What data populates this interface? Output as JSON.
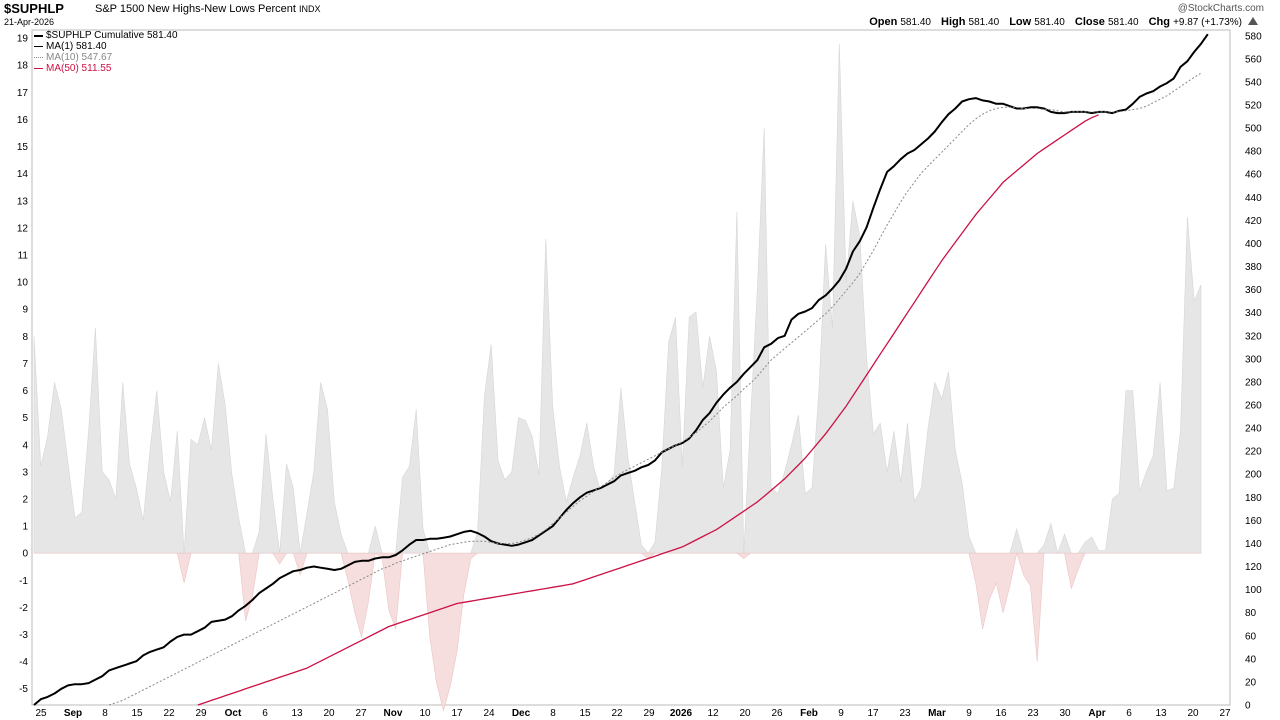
{
  "header": {
    "symbol": "$SUPHLP",
    "name": "S&P 1500 New Highs-New Lows Percent",
    "exchange": "INDX",
    "date": "21-Apr-2026",
    "brand": "@StockCharts.com",
    "open_label": "Open",
    "open": "581.40",
    "high_label": "High",
    "high": "581.40",
    "low_label": "Low",
    "low": "581.40",
    "close_label": "Close",
    "close": "581.40",
    "chg_label": "Chg",
    "chg": "+9.87 (+1.73%)"
  },
  "legend": [
    {
      "label": "$SUPHLP Cumulative 581.40",
      "color": "#000000",
      "style": "solid"
    },
    {
      "label": "MA(1) 581.40",
      "color": "#000000",
      "style": "solid"
    },
    {
      "label": "MA(10) 547.67",
      "color": "#888888",
      "style": "dotted"
    },
    {
      "label": "MA(50) 511.55",
      "color": "#cc1144",
      "style": "solid"
    }
  ],
  "chart_data": {
    "type": "line",
    "left_axis": {
      "min": -5.6,
      "max": 19.3,
      "ticks": [
        "19",
        "18",
        "17",
        "16",
        "15",
        "14",
        "13",
        "12",
        "11",
        "10",
        "9",
        "8",
        "7",
        "6",
        "5",
        "4",
        "3",
        "2",
        "1",
        "0",
        "-1",
        "-2",
        "-3",
        "-4",
        "-5"
      ]
    },
    "right_axis": {
      "min": 0,
      "max": 585,
      "ticks": [
        "580",
        "560",
        "540",
        "520",
        "500",
        "480",
        "460",
        "440",
        "420",
        "400",
        "380",
        "360",
        "340",
        "320",
        "300",
        "280",
        "260",
        "240",
        "220",
        "200",
        "180",
        "160",
        "140",
        "120",
        "100",
        "80",
        "60",
        "40",
        "20",
        "0"
      ]
    },
    "x_labels": [
      "25",
      "Sep",
      "8",
      "15",
      "22",
      "29",
      "Oct",
      "6",
      "13",
      "20",
      "27",
      "Nov",
      "10",
      "17",
      "24",
      "Dec",
      "8",
      "15",
      "22",
      "29",
      "2026",
      "12",
      "20",
      "26",
      "Feb",
      "9",
      "17",
      "23",
      "Mar",
      "9",
      "16",
      "23",
      "30",
      "Apr",
      "6",
      "13",
      "20",
      "27"
    ],
    "bold_labels": [
      "Sep",
      "Oct",
      "Nov",
      "Dec",
      "2026",
      "Feb",
      "Mar",
      "Apr"
    ],
    "grid": false,
    "legend_position": "top-left",
    "series": [
      {
        "name": "$SUPHLP",
        "axis": "left",
        "render": "area",
        "values": [
          8.0,
          3.2,
          4.3,
          6.3,
          5.3,
          3.3,
          1.3,
          1.5,
          4.5,
          8.3,
          3.0,
          2.7,
          2.0,
          6.3,
          3.3,
          2.4,
          1.2,
          3.8,
          6.0,
          3.0,
          1.9,
          4.5,
          -1.1,
          4.2,
          4.0,
          5.0,
          3.8,
          7.0,
          5.5,
          2.9,
          1.3,
          -2.5,
          -1.6,
          0.8,
          4.4,
          2.0,
          -0.4,
          3.3,
          2.4,
          -0.8,
          1.5,
          3.0,
          6.3,
          5.3,
          1.9,
          0.7,
          -1.0,
          -2.2,
          -3.1,
          -1.8,
          1.0,
          -0.2,
          -2.1,
          -2.8,
          2.8,
          3.2,
          5.3,
          0.9,
          -3.1,
          -4.8,
          -5.8,
          -4.9,
          -3.6,
          -1.5,
          -0.2,
          0.8,
          5.8,
          7.7,
          3.4,
          2.7,
          3.0,
          5.0,
          4.9,
          4.3,
          2.9,
          11.6,
          5.4,
          3.2,
          1.9,
          2.8,
          3.6,
          4.8,
          3.2,
          2.3,
          2.6,
          2.9,
          6.1,
          3.6,
          1.9,
          0.3,
          -0.2,
          0.4,
          3.2,
          7.8,
          8.7,
          3.2,
          8.7,
          8.9,
          6.1,
          8.0,
          6.7,
          2.4,
          3.8,
          12.6,
          -0.2,
          5.0,
          9.8,
          15.7,
          2.4,
          2.2,
          3.0,
          4.0,
          5.1,
          2.2,
          2.4,
          5.9,
          11.4,
          8.3,
          18.8,
          10.0,
          13.0,
          11.7,
          7.2,
          4.4,
          4.8,
          3.0,
          4.5,
          2.6,
          4.8,
          1.9,
          2.4,
          4.6,
          6.3,
          5.7,
          6.7,
          3.8,
          2.6,
          0.6,
          -1.1,
          -2.8,
          -1.7,
          -1.1,
          -2.2,
          -1.2,
          0.9,
          -0.8,
          -1.2,
          -4.0,
          0.3,
          1.1,
          0.0,
          0.7,
          -1.3,
          -0.6,
          0.4,
          0.6,
          0.1,
          0.1,
          2.0,
          2.2,
          6.0,
          6.0,
          2.3,
          3.0,
          3.6,
          6.3,
          2.3,
          2.4,
          4.5,
          12.4,
          9.3,
          9.9
        ]
      },
      {
        "name": "$SUPHLP Cumulative",
        "axis": "right",
        "render": "line",
        "values": [
          0,
          5,
          7,
          10,
          14,
          17,
          18,
          18,
          19,
          22,
          25,
          30,
          32,
          34,
          36,
          38,
          43,
          46,
          48,
          50,
          55,
          59,
          61,
          61,
          64,
          67,
          72,
          73,
          74,
          77,
          82,
          86,
          91,
          97,
          101,
          105,
          110,
          113,
          116,
          117,
          119,
          120,
          119,
          118,
          117,
          118,
          121,
          124,
          125,
          125,
          127,
          128,
          128,
          130,
          134,
          139,
          143,
          143,
          144,
          144,
          145,
          146,
          148,
          150,
          151,
          149,
          146,
          142,
          140,
          139,
          138,
          139,
          141,
          143,
          147,
          151,
          155,
          162,
          169,
          175,
          180,
          184,
          186,
          188,
          191,
          194,
          199,
          201,
          203,
          206,
          208,
          212,
          219,
          222,
          225,
          227,
          231,
          238,
          247,
          253,
          262,
          269,
          275,
          280,
          287,
          293,
          299,
          310,
          313,
          318,
          320,
          334,
          339,
          341,
          344,
          351,
          355,
          361,
          368,
          378,
          393,
          402,
          414,
          431,
          447,
          462,
          467,
          473,
          478,
          481,
          486,
          491,
          497,
          505,
          512,
          517,
          523,
          525,
          526,
          524,
          523,
          521,
          521,
          519,
          517,
          517,
          518,
          518,
          517,
          514,
          513,
          513,
          514,
          514,
          514,
          513,
          514,
          514,
          513,
          515,
          516,
          521,
          527,
          530,
          532,
          536,
          539,
          543,
          553,
          558,
          566,
          573,
          581.4
        ]
      },
      {
        "name": "MA(10)",
        "axis": "right",
        "render": "line",
        "values": [
          null,
          null,
          null,
          null,
          null,
          null,
          null,
          null,
          null,
          null,
          null,
          0,
          2,
          4,
          7,
          10,
          13,
          16,
          19,
          22,
          25,
          28,
          31,
          34,
          37,
          40,
          43,
          46,
          49,
          52,
          55,
          58,
          61,
          64,
          67,
          70,
          73,
          76,
          79,
          82,
          85,
          88,
          91,
          94,
          97,
          100,
          103,
          106,
          109,
          112,
          115,
          118,
          120,
          123,
          125,
          127,
          129,
          131,
          133,
          135,
          137,
          139,
          140,
          141,
          142,
          142,
          142,
          141,
          140,
          140,
          140,
          141,
          143,
          145,
          148,
          152,
          157,
          162,
          167,
          172,
          177,
          181,
          185,
          189,
          193,
          197,
          201,
          204,
          207,
          210,
          213,
          216,
          219,
          222,
          225,
          228,
          232,
          236,
          241,
          246,
          252,
          258,
          263,
          268,
          274,
          279,
          285,
          292,
          299,
          304,
          309,
          314,
          319,
          324,
          329,
          334,
          339,
          345,
          352,
          359,
          366,
          374,
          384,
          394,
          405,
          416,
          426,
          436,
          445,
          453,
          461,
          467,
          473,
          479,
          485,
          491,
          497,
          503,
          508,
          512,
          515,
          517,
          518,
          518,
          518,
          517,
          517,
          517,
          516,
          516,
          515,
          514,
          514,
          514,
          514,
          514,
          514,
          514,
          514,
          514,
          515,
          516,
          517,
          519,
          522,
          525,
          528,
          532,
          536,
          540,
          544,
          547.67
        ]
      },
      {
        "name": "MA(50)",
        "axis": "right",
        "render": "line",
        "values": [
          null,
          null,
          null,
          null,
          null,
          null,
          null,
          null,
          null,
          null,
          null,
          null,
          null,
          null,
          null,
          null,
          null,
          null,
          null,
          null,
          null,
          null,
          null,
          null,
          0,
          2,
          4,
          6,
          8,
          10,
          12,
          14,
          16,
          18,
          20,
          22,
          24,
          26,
          28,
          30,
          32,
          35,
          38,
          41,
          44,
          47,
          50,
          53,
          56,
          59,
          62,
          65,
          68,
          70,
          72,
          74,
          76,
          78,
          80,
          82,
          84,
          86,
          88,
          89,
          90,
          91,
          92,
          93,
          94,
          95,
          96,
          97,
          98,
          99,
          100,
          101,
          102,
          103,
          104,
          105,
          107,
          109,
          111,
          113,
          115,
          117,
          119,
          121,
          123,
          125,
          127,
          129,
          131,
          133,
          135,
          137,
          140,
          143,
          146,
          149,
          152,
          156,
          160,
          164,
          168,
          172,
          176,
          181,
          186,
          191,
          196,
          202,
          208,
          214,
          221,
          228,
          235,
          243,
          251,
          259,
          268,
          277,
          286,
          295,
          304,
          313,
          322,
          331,
          340,
          349,
          358,
          367,
          376,
          385,
          393,
          401,
          409,
          417,
          425,
          432,
          439,
          446,
          453,
          458,
          463,
          468,
          473,
          478,
          482,
          486,
          490,
          494,
          498,
          502,
          506,
          509,
          511.55
        ]
      }
    ]
  }
}
